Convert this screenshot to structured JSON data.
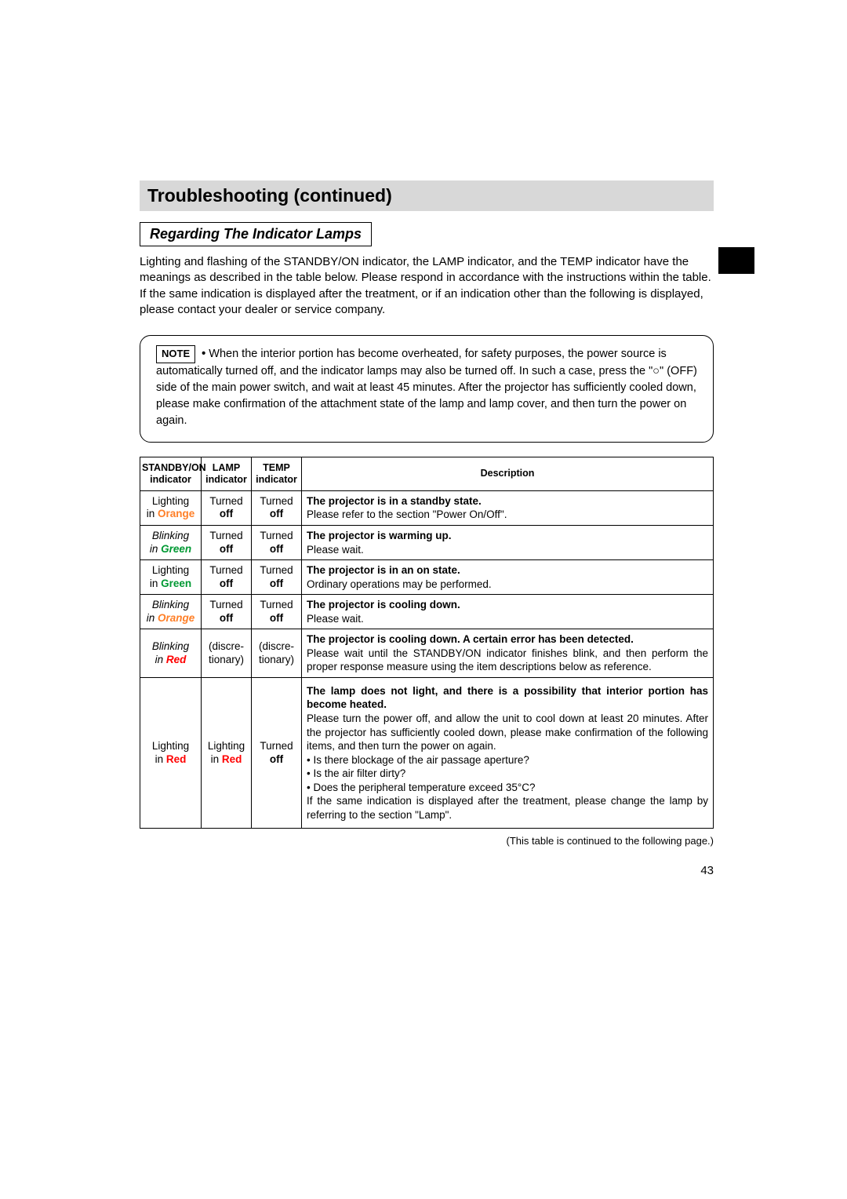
{
  "colors": {
    "title_bar_bg": "#d8d8d8",
    "orange": "#ff7f27",
    "green": "#009933",
    "red": "#ff0000",
    "border": "#000000",
    "background": "#ffffff"
  },
  "page_number": "43",
  "title": "Troubleshooting (continued)",
  "subsection": "Regarding The Indicator Lamps",
  "intro": "Lighting and flashing of the STANDBY/ON indicator, the LAMP indicator, and the TEMP indicator have the meanings as described in the table below. Please respond in accordance with the instructions within the table. If the same indication is displayed after the treatment, or if an indication other than the following is displayed, please contact your dealer or service company.",
  "note": {
    "label": "NOTE",
    "text": "When the interior portion has become overheated, for safety purposes, the power source is automatically turned off, and the indicator lamps may also be turned off. In such a case, press the \"○\" (OFF) side of the main power switch, and wait at least 45 minutes. After the projector has sufficiently cooled down, please make confirmation of the attachment state of the lamp and lamp cover, and then turn the power on again."
  },
  "table": {
    "headers": {
      "c1a": "STANDBY/ON",
      "c1b": "indicator",
      "c2a": "LAMP",
      "c2b": "indicator",
      "c3a": "TEMP",
      "c3b": "indicator",
      "c4": "Description"
    },
    "continuation": "(This table is continued to the following page.)",
    "rows": [
      {
        "standby_prefix": "Lighting",
        "standby_color_word": "Orange",
        "standby_color_class": "orange",
        "standby_italic": false,
        "standby_in": "in ",
        "lamp_l1": "Turned",
        "lamp_l2": "off",
        "temp_l1": "Turned",
        "temp_l2": "off",
        "desc_head": "The projector is in a standby state.",
        "desc_body": "Please refer to the section \"Power On/Off\".",
        "justify": false
      },
      {
        "standby_prefix": "Blinking",
        "standby_color_word": "Green",
        "standby_color_class": "green",
        "standby_italic": true,
        "standby_in": "in ",
        "lamp_l1": "Turned",
        "lamp_l2": "off",
        "temp_l1": "Turned",
        "temp_l2": "off",
        "desc_head": "The projector is warming up.",
        "desc_body": "Please wait.",
        "justify": false
      },
      {
        "standby_prefix": "Lighting",
        "standby_color_word": "Green",
        "standby_color_class": "green",
        "standby_italic": false,
        "standby_in": "in ",
        "lamp_l1": "Turned",
        "lamp_l2": "off",
        "temp_l1": "Turned",
        "temp_l2": "off",
        "desc_head": "The projector is in an on state.",
        "desc_body": "Ordinary operations may be performed.",
        "justify": false
      },
      {
        "standby_prefix": "Blinking",
        "standby_color_word": "Orange",
        "standby_color_class": "orange",
        "standby_italic": true,
        "standby_in": "in ",
        "lamp_l1": "Turned",
        "lamp_l2": "off",
        "temp_l1": "Turned",
        "temp_l2": "off",
        "desc_head": "The projector is cooling down.",
        "desc_body": "Please wait.",
        "justify": false
      },
      {
        "standby_prefix": "Blinking",
        "standby_color_word": "Red",
        "standby_color_class": "red",
        "standby_italic": true,
        "standby_in": "in ",
        "lamp_l1": "(discre-",
        "lamp_l2": "tionary)",
        "lamp_bold": false,
        "temp_l1": "(discre-",
        "temp_l2": "tionary)",
        "temp_bold": false,
        "desc_head": "The projector is cooling down. A certain error has been detected.",
        "desc_body": "Please wait until the STANDBY/ON indicator finishes blink, and then perform the proper response measure using the item descriptions below as reference.",
        "justify": true
      },
      {
        "standby_prefix": "Lighting",
        "standby_color_word": "Red",
        "standby_color_class": "red",
        "standby_italic": false,
        "standby_in": "in ",
        "lamp_l1": "Lighting",
        "lamp_l2_pre": "in ",
        "lamp_l2_color": "Red",
        "lamp_l2_class": "red",
        "lamp_custom": true,
        "temp_l1": "Turned",
        "temp_l2": "off",
        "desc_head": "The lamp does not light, and there is a possibility that interior portion has become heated.",
        "desc_body_lines": [
          "Please turn the power off, and allow the unit to cool down at least 20 minutes. After the projector has sufficiently cooled down, please make confirmation of the following items, and then turn the power on again.",
          "• Is there blockage of the air passage aperture?",
          "• Is the air filter dirty?",
          "• Does the peripheral temperature exceed 35°C?",
          "If the same indication is displayed after the treatment, please change the lamp by referring to the section \"Lamp\"."
        ],
        "justify": true,
        "tall": true
      }
    ]
  }
}
